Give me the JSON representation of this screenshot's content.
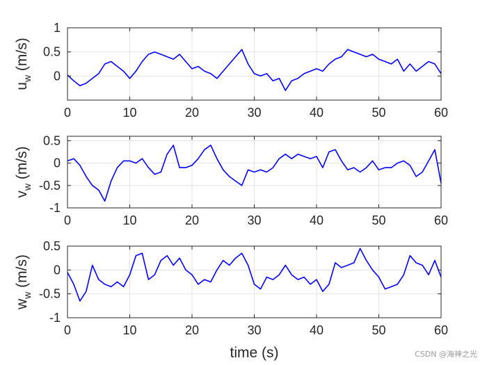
{
  "chart_data": [
    {
      "type": "line",
      "ylabel": "u",
      "ylabel_sub": "w",
      "ylabel_unit": " (m/s)",
      "xlim": [
        0,
        60
      ],
      "ylim": [
        -0.5,
        1
      ],
      "xticks": [
        0,
        10,
        20,
        30,
        40,
        50,
        60
      ],
      "yticks": [
        0,
        0.5,
        1
      ],
      "grid": true,
      "color": "#0000ff",
      "series": [
        {
          "x": [
            0,
            1,
            2,
            3,
            4,
            5,
            6,
            7,
            8,
            9,
            10,
            11,
            12,
            13,
            14,
            15,
            16,
            17,
            18,
            19,
            20,
            21,
            22,
            23,
            24,
            25,
            26,
            27,
            28,
            29,
            30,
            31,
            32,
            33,
            34,
            35,
            36,
            37,
            38,
            39,
            40,
            41,
            42,
            43,
            44,
            45,
            46,
            47,
            48,
            49,
            50,
            51,
            52,
            53,
            54,
            55,
            56,
            57,
            58,
            59,
            60
          ],
          "y": [
            0.02,
            -0.1,
            -0.2,
            -0.15,
            -0.05,
            0.05,
            0.25,
            0.3,
            0.2,
            0.1,
            -0.05,
            0.1,
            0.3,
            0.45,
            0.5,
            0.45,
            0.4,
            0.35,
            0.45,
            0.3,
            0.15,
            0.2,
            0.1,
            0.05,
            -0.05,
            0.1,
            0.25,
            0.4,
            0.55,
            0.25,
            0.05,
            0.0,
            0.05,
            -0.1,
            -0.05,
            -0.3,
            -0.1,
            -0.05,
            0.05,
            0.1,
            0.15,
            0.1,
            0.25,
            0.35,
            0.4,
            0.55,
            0.5,
            0.45,
            0.4,
            0.45,
            0.35,
            0.3,
            0.25,
            0.35,
            0.1,
            0.25,
            0.1,
            0.2,
            0.3,
            0.25,
            0.05
          ]
        }
      ]
    },
    {
      "type": "line",
      "ylabel": "v",
      "ylabel_sub": "w",
      "ylabel_unit": " (m/s)",
      "xlim": [
        0,
        60
      ],
      "ylim": [
        -1,
        0.6
      ],
      "xticks": [
        0,
        10,
        20,
        30,
        40,
        50,
        60
      ],
      "yticks": [
        -1,
        -0.5,
        0,
        0.5
      ],
      "grid": true,
      "color": "#0000ff",
      "series": [
        {
          "x": [
            0,
            1,
            2,
            3,
            4,
            5,
            6,
            7,
            8,
            9,
            10,
            11,
            12,
            13,
            14,
            15,
            16,
            17,
            18,
            19,
            20,
            21,
            22,
            23,
            24,
            25,
            26,
            27,
            28,
            29,
            30,
            31,
            32,
            33,
            34,
            35,
            36,
            37,
            38,
            39,
            40,
            41,
            42,
            43,
            44,
            45,
            46,
            47,
            48,
            49,
            50,
            51,
            52,
            53,
            54,
            55,
            56,
            57,
            58,
            59,
            60
          ],
          "y": [
            0.05,
            0.1,
            -0.05,
            -0.3,
            -0.5,
            -0.6,
            -0.85,
            -0.4,
            -0.1,
            0.05,
            0.05,
            0.0,
            0.1,
            -0.1,
            -0.25,
            -0.2,
            0.2,
            0.4,
            -0.1,
            -0.1,
            -0.05,
            0.1,
            0.3,
            0.4,
            0.1,
            -0.15,
            -0.3,
            -0.4,
            -0.5,
            -0.15,
            -0.2,
            -0.15,
            -0.2,
            -0.1,
            0.1,
            0.2,
            0.1,
            0.2,
            0.15,
            0.1,
            0.15,
            -0.1,
            0.25,
            0.3,
            0.05,
            -0.15,
            -0.1,
            -0.2,
            -0.1,
            0.05,
            -0.15,
            -0.1,
            -0.1,
            0.0,
            0.05,
            -0.05,
            -0.3,
            -0.2,
            0.05,
            0.3,
            -0.45
          ]
        }
      ]
    },
    {
      "type": "line",
      "ylabel": "w",
      "ylabel_sub": "w",
      "ylabel_unit": " (m/s)",
      "xlabel": "time (s)",
      "xlim": [
        0,
        60
      ],
      "ylim": [
        -1,
        0.5
      ],
      "xticks": [
        0,
        10,
        20,
        30,
        40,
        50,
        60
      ],
      "yticks": [
        -1,
        -0.5,
        0,
        0.5
      ],
      "grid": true,
      "color": "#0000ff",
      "series": [
        {
          "x": [
            0,
            1,
            2,
            3,
            4,
            5,
            6,
            7,
            8,
            9,
            10,
            11,
            12,
            13,
            14,
            15,
            16,
            17,
            18,
            19,
            20,
            21,
            22,
            23,
            24,
            25,
            26,
            27,
            28,
            29,
            30,
            31,
            32,
            33,
            34,
            35,
            36,
            37,
            38,
            39,
            40,
            41,
            42,
            43,
            44,
            45,
            46,
            47,
            48,
            49,
            50,
            51,
            52,
            53,
            54,
            55,
            56,
            57,
            58,
            59,
            60
          ],
          "y": [
            -0.05,
            -0.3,
            -0.65,
            -0.45,
            0.1,
            -0.2,
            -0.3,
            -0.35,
            -0.25,
            -0.35,
            -0.1,
            0.3,
            0.35,
            -0.2,
            -0.1,
            0.2,
            0.3,
            0.1,
            0.25,
            0.0,
            -0.1,
            -0.3,
            -0.2,
            -0.25,
            0.0,
            0.2,
            0.1,
            0.25,
            0.35,
            0.1,
            -0.3,
            -0.4,
            -0.15,
            -0.2,
            -0.1,
            0.1,
            -0.1,
            -0.2,
            -0.15,
            -0.3,
            -0.2,
            -0.45,
            -0.3,
            0.15,
            0.05,
            0.1,
            0.15,
            0.45,
            0.2,
            0.0,
            -0.15,
            -0.4,
            -0.35,
            -0.3,
            -0.1,
            0.3,
            0.15,
            0.1,
            -0.1,
            0.2,
            -0.15
          ]
        }
      ]
    }
  ],
  "watermark": "CSDN @海神之光"
}
